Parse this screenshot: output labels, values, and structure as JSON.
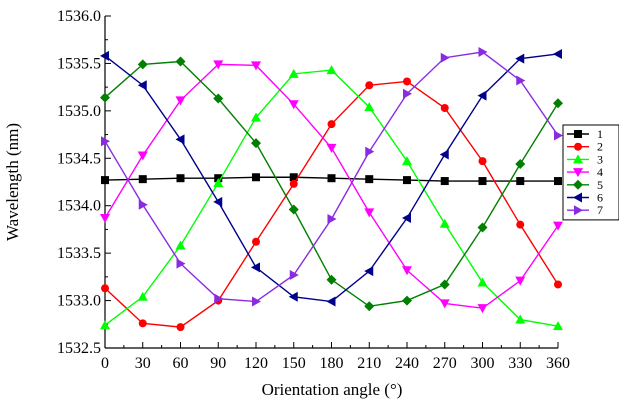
{
  "chart_data": {
    "type": "line",
    "title": "",
    "xlabel": "Orientation angle (°)",
    "ylabel": "Wavelength (nm)",
    "xlim": [
      0,
      360
    ],
    "ylim": [
      1532.5,
      1536.0
    ],
    "xticks": [
      0,
      30,
      60,
      90,
      120,
      150,
      180,
      210,
      240,
      270,
      300,
      330,
      360
    ],
    "yticks": [
      1532.5,
      1533.0,
      1533.5,
      1534.0,
      1534.5,
      1535.0,
      1535.5,
      1536.0
    ],
    "ytick_labels": [
      "1532.5",
      "1533.0",
      "1533.5",
      "1534.0",
      "1534.5",
      "1535.0",
      "1535.5",
      "1536.0"
    ],
    "grid": false,
    "legend_position": "right",
    "x": [
      0,
      30,
      60,
      90,
      120,
      150,
      180,
      210,
      240,
      270,
      300,
      330,
      360
    ],
    "series": [
      {
        "name": "1",
        "color": "#000000",
        "marker": "square",
        "values": [
          1534.27,
          1534.28,
          1534.29,
          1534.29,
          1534.3,
          1534.3,
          1534.29,
          1534.28,
          1534.27,
          1534.26,
          1534.26,
          1534.26,
          1534.26
        ]
      },
      {
        "name": "2",
        "color": "#ff0000",
        "marker": "circle",
        "values": [
          1533.13,
          1532.76,
          1532.72,
          1533.0,
          1533.62,
          1534.23,
          1534.86,
          1535.27,
          1535.31,
          1535.03,
          1534.47,
          1533.8,
          1533.17
        ]
      },
      {
        "name": "3",
        "color": "#00ff00",
        "marker": "triangle-up",
        "values": [
          1532.74,
          1533.04,
          1533.58,
          1534.24,
          1534.93,
          1535.39,
          1535.43,
          1535.04,
          1534.47,
          1533.81,
          1533.19,
          1532.8,
          1532.73
        ]
      },
      {
        "name": "4",
        "color": "#ff00ff",
        "marker": "triangle-down",
        "values": [
          1533.87,
          1534.53,
          1535.11,
          1535.49,
          1535.48,
          1535.07,
          1534.61,
          1533.93,
          1533.32,
          1532.97,
          1532.92,
          1533.21,
          1533.79
        ]
      },
      {
        "name": "5",
        "color": "#008000",
        "marker": "diamond",
        "values": [
          1535.14,
          1535.49,
          1535.52,
          1535.13,
          1534.66,
          1533.96,
          1533.22,
          1532.94,
          1533.0,
          1533.17,
          1533.77,
          1534.44,
          1535.08
        ]
      },
      {
        "name": "6",
        "color": "#00008b",
        "marker": "triangle-left",
        "values": [
          1535.58,
          1535.27,
          1534.7,
          1534.04,
          1533.35,
          1533.04,
          1532.99,
          1533.31,
          1533.87,
          1534.54,
          1535.16,
          1535.55,
          1535.6
        ]
      },
      {
        "name": "7",
        "color": "#8a2be2",
        "marker": "triangle-right",
        "values": [
          1534.68,
          1534.01,
          1533.39,
          1533.02,
          1532.99,
          1533.27,
          1533.86,
          1534.57,
          1535.18,
          1535.56,
          1535.62,
          1535.32,
          1534.74
        ]
      }
    ]
  }
}
